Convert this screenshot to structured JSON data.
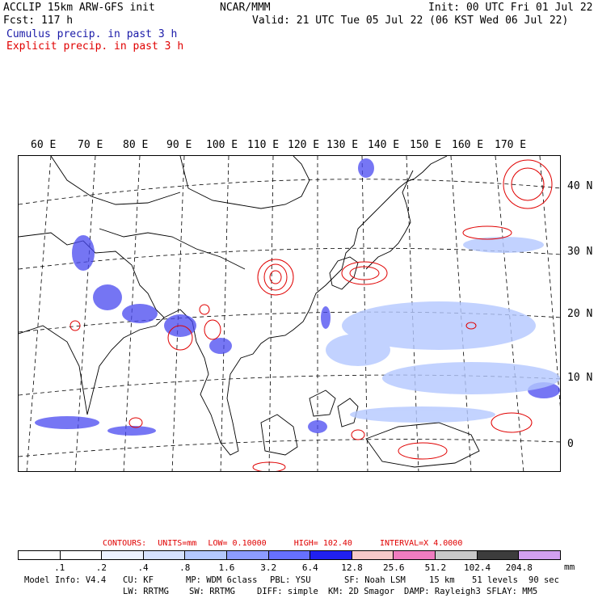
{
  "header": {
    "model_line": "ACCLIP 15km ARW-GFS init",
    "org": "NCAR/MMM",
    "init": "Init: 00 UTC Fri 01 Jul 22",
    "fcst": "Fcst:  117 h",
    "valid": "Valid: 21 UTC Tue 05 Jul 22 (06 KST Wed 06 Jul 22)",
    "cumulus_label": "Cumulus precip. in past 3 h",
    "explicit_label": "Explicit precip. in past 3 h"
  },
  "map": {
    "lon_labels": [
      "60 E",
      "70 E",
      "80 E",
      "90 E",
      "100 E",
      "110 E",
      "120 E",
      "130 E",
      "140 E",
      "150 E",
      "160 E",
      "170 E"
    ],
    "lat_labels": [
      "40 N",
      "30 N",
      "20 N",
      "10 N",
      "0"
    ]
  },
  "contours": {
    "label": "CONTOURS:",
    "units": "UNITS=mm",
    "low": "LOW= 0.10000",
    "high": "HIGH= 102.40",
    "interval": "INTERVAL=X  4.0000"
  },
  "colorbar": {
    "ticks": [
      ".1",
      ".2",
      ".4",
      ".8",
      "1.6",
      "3.2",
      "6.4",
      "12.8",
      "25.6",
      "51.2",
      "102.4",
      "204.8"
    ],
    "unit": "mm",
    "colors": [
      "#ffffff",
      "#ffffff",
      "#ecf2ff",
      "#d6e2ff",
      "#b4c8ff",
      "#8c9cff",
      "#6670ff",
      "#2020f0",
      "#f6c8c8",
      "#f07cc0",
      "#c8c8c8",
      "#3c3c3c",
      "#d2a0f0"
    ]
  },
  "footer": {
    "model_info": "Model Info: V4.4",
    "cu": "CU: KF",
    "mp": "MP: WDM 6class",
    "pbl": "PBL: YSU",
    "sf": "SF: Noah LSM",
    "res": "15 km",
    "levels": "51 levels",
    "dt": "90 sec",
    "lw": "LW: RRTMG",
    "sw": "SW: RRTMG",
    "diff": "DIFF: simple",
    "km": "KM: 2D Smagor",
    "damp": "DAMP: Rayleigh3",
    "sflay": "SFLAY: MM5"
  }
}
